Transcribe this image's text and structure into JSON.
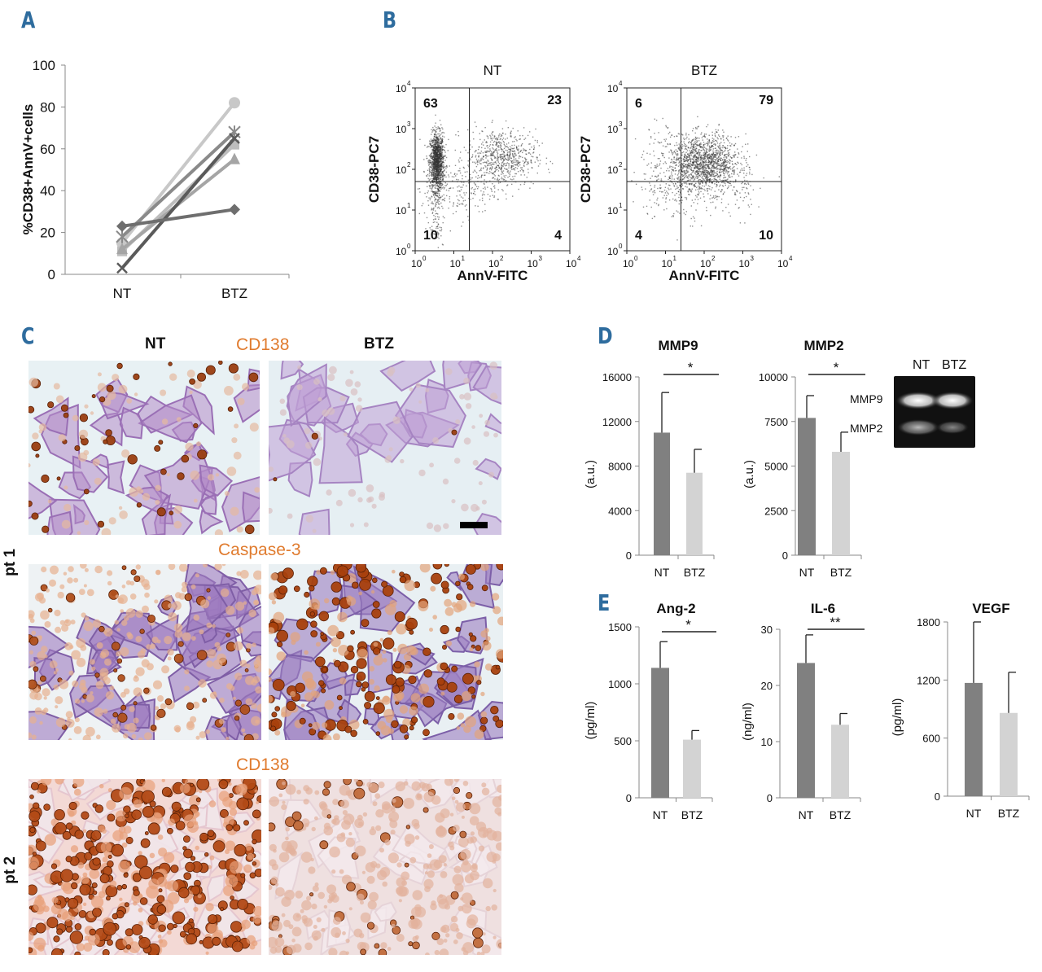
{
  "panels": {
    "a": "A",
    "b": "B",
    "c": "C",
    "d": "D",
    "e": "E"
  },
  "colors": {
    "panel_letter": "#2e6c9e",
    "stain_label": "#e07b2e",
    "bar_nt": "#808080",
    "bar_btz": "#d3d3d3"
  },
  "chart_data": [
    {
      "id": "A",
      "type": "line",
      "categories": [
        "NT",
        "BTZ"
      ],
      "ylabel": "%CD38+AnnV+cells",
      "ylim": [
        0,
        100
      ],
      "yticks": [
        0,
        20,
        40,
        60,
        80,
        100
      ],
      "series": [
        {
          "marker": "circle",
          "color": "#c8c8c8",
          "values": [
            15,
            82
          ]
        },
        {
          "marker": "star",
          "color": "#8a8a8a",
          "values": [
            18,
            68
          ]
        },
        {
          "marker": "square",
          "color": "#bdbdbd",
          "values": [
            11,
            62
          ]
        },
        {
          "marker": "triangle",
          "color": "#a5a5a5",
          "values": [
            12,
            55
          ]
        },
        {
          "marker": "x",
          "color": "#5a5a5a",
          "values": [
            3,
            65
          ]
        },
        {
          "marker": "diamond",
          "color": "#6e6e6e",
          "values": [
            23,
            31
          ]
        }
      ]
    },
    {
      "id": "B",
      "type": "scatter",
      "plots": [
        {
          "title": "NT",
          "xlabel": "AnnV-FITC",
          "ylabel": "CD38-PC7",
          "quadrants": {
            "top_left": "63",
            "top_right": "23",
            "bottom_left": "10",
            "bottom_right": "4"
          }
        },
        {
          "title": "BTZ",
          "xlabel": "AnnV-FITC",
          "ylabel": "CD38-PC7",
          "quadrants": {
            "top_left": "6",
            "top_right": "79",
            "bottom_left": "4",
            "bottom_right": "10"
          }
        }
      ],
      "x_ticks": [
        "10",
        "10",
        "10",
        "10",
        "10"
      ],
      "x_tick_exp": [
        "0",
        "1",
        "2",
        "3",
        "4"
      ],
      "y_ticks": [
        "10",
        "10",
        "10",
        "10",
        "10"
      ],
      "y_tick_exp": [
        "0",
        "1",
        "2",
        "3",
        "4"
      ],
      "xlim": [
        0,
        4
      ],
      "ylim": [
        0,
        4
      ]
    },
    {
      "id": "D-MMP9",
      "type": "bar",
      "title": "MMP9",
      "ylabel": "(a.u.)",
      "categories": [
        "NT",
        "BTZ"
      ],
      "values": [
        11000,
        7400
      ],
      "errors": [
        3600,
        2100
      ],
      "ylim": [
        0,
        16000
      ],
      "yticks": [
        0,
        4000,
        8000,
        12000,
        16000
      ],
      "significance": "*"
    },
    {
      "id": "D-MMP2",
      "type": "bar",
      "title": "MMP2",
      "ylabel": "(a.u.)",
      "categories": [
        "NT",
        "BTZ"
      ],
      "values": [
        7700,
        5800
      ],
      "errors": [
        1250,
        1100
      ],
      "ylim": [
        0,
        10000
      ],
      "yticks": [
        0,
        2500,
        5000,
        7500,
        10000
      ],
      "significance": "*"
    },
    {
      "id": "E-Ang2",
      "type": "bar",
      "title": "Ang-2",
      "ylabel": "(pg/ml)",
      "categories": [
        "NT",
        "BTZ"
      ],
      "values": [
        1140,
        510
      ],
      "errors": [
        230,
        80
      ],
      "ylim": [
        0,
        1500
      ],
      "yticks": [
        0,
        500,
        1000,
        1500
      ],
      "significance": "*"
    },
    {
      "id": "E-IL6",
      "type": "bar",
      "title": "IL-6",
      "ylabel": "(ng/ml)",
      "categories": [
        "NT",
        "BTZ"
      ],
      "values": [
        24,
        13
      ],
      "errors": [
        5,
        2
      ],
      "ylim": [
        0,
        30
      ],
      "yticks": [
        0,
        10,
        20,
        30
      ],
      "significance": "**"
    },
    {
      "id": "E-VEGF",
      "type": "bar",
      "title": "VEGF",
      "ylabel": "(pg/ml)",
      "categories": [
        "NT",
        "BTZ"
      ],
      "values": [
        1170,
        860
      ],
      "errors": [
        630,
        420
      ],
      "ylim": [
        0,
        1800
      ],
      "yticks": [
        0,
        600,
        1200,
        1800
      ],
      "significance": ""
    }
  ],
  "panel_c": {
    "col_nt": "NT",
    "col_btz": "BTZ",
    "stain_1": "CD138",
    "stain_2": "Caspase-3",
    "stain_3": "CD138",
    "pt1": "pt 1",
    "pt2": "pt 2"
  },
  "gel": {
    "col_nt": "NT",
    "col_btz": "BTZ",
    "band_1": "MMP9",
    "band_2": "MMP2"
  }
}
